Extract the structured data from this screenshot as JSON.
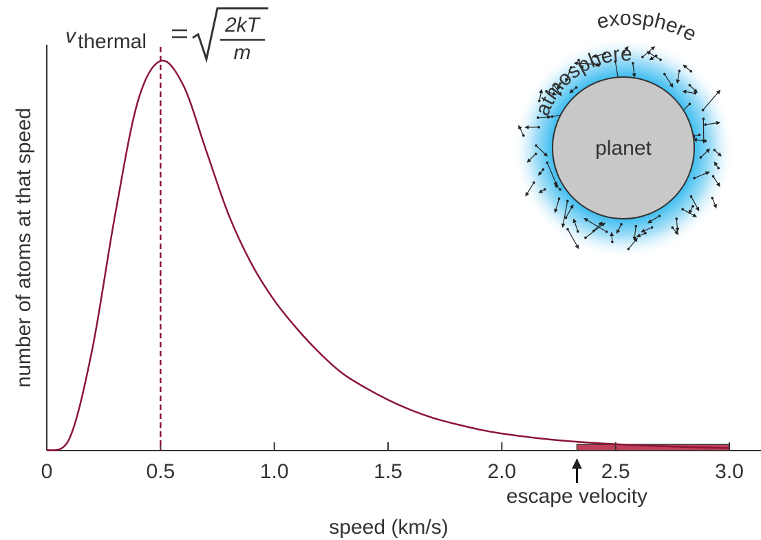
{
  "chart_data": {
    "type": "line",
    "x_label": "speed (km/s)",
    "y_label": "number of atoms at that speed",
    "x": [
      0,
      0.1,
      0.2,
      0.3,
      0.4,
      0.5,
      0.6,
      0.7,
      0.8,
      0.9,
      1.0,
      1.1,
      1.2,
      1.3,
      1.4,
      1.5,
      1.6,
      1.7,
      1.8,
      1.9,
      2.0,
      2.2,
      2.4,
      2.6,
      2.8,
      3.0
    ],
    "series": [
      {
        "color": "#8b1538",
        "values": [
          0,
          0.03,
          0.25,
          0.58,
          0.86,
          0.96,
          0.9,
          0.74,
          0.58,
          0.46,
          0.37,
          0.3,
          0.24,
          0.19,
          0.155,
          0.125,
          0.1,
          0.08,
          0.065,
          0.052,
          0.042,
          0.028,
          0.019,
          0.013,
          0.009,
          0.006
        ]
      }
    ],
    "xlim": [
      0,
      3.0
    ],
    "ylim": [
      0,
      1
    ],
    "xticks": [
      0,
      0.5,
      {
        "value": 1,
        "label": "1.0"
      },
      1.5,
      {
        "value": 2,
        "label": "2.0"
      },
      2.5,
      {
        "value": 3,
        "label": "3.0"
      }
    ],
    "thermal_velocity": 0.5,
    "formula": {
      "symbol": "v",
      "subscript": "thermal",
      "numerator": "2kT",
      "denominator": "m"
    },
    "escape_velocity": 2.33,
    "escape_label": "escape velocity",
    "escape_color": "#c0405a",
    "inset": {
      "planet": "planet",
      "atmosphere": "atmosphere",
      "exosphere": "exosphere"
    }
  }
}
